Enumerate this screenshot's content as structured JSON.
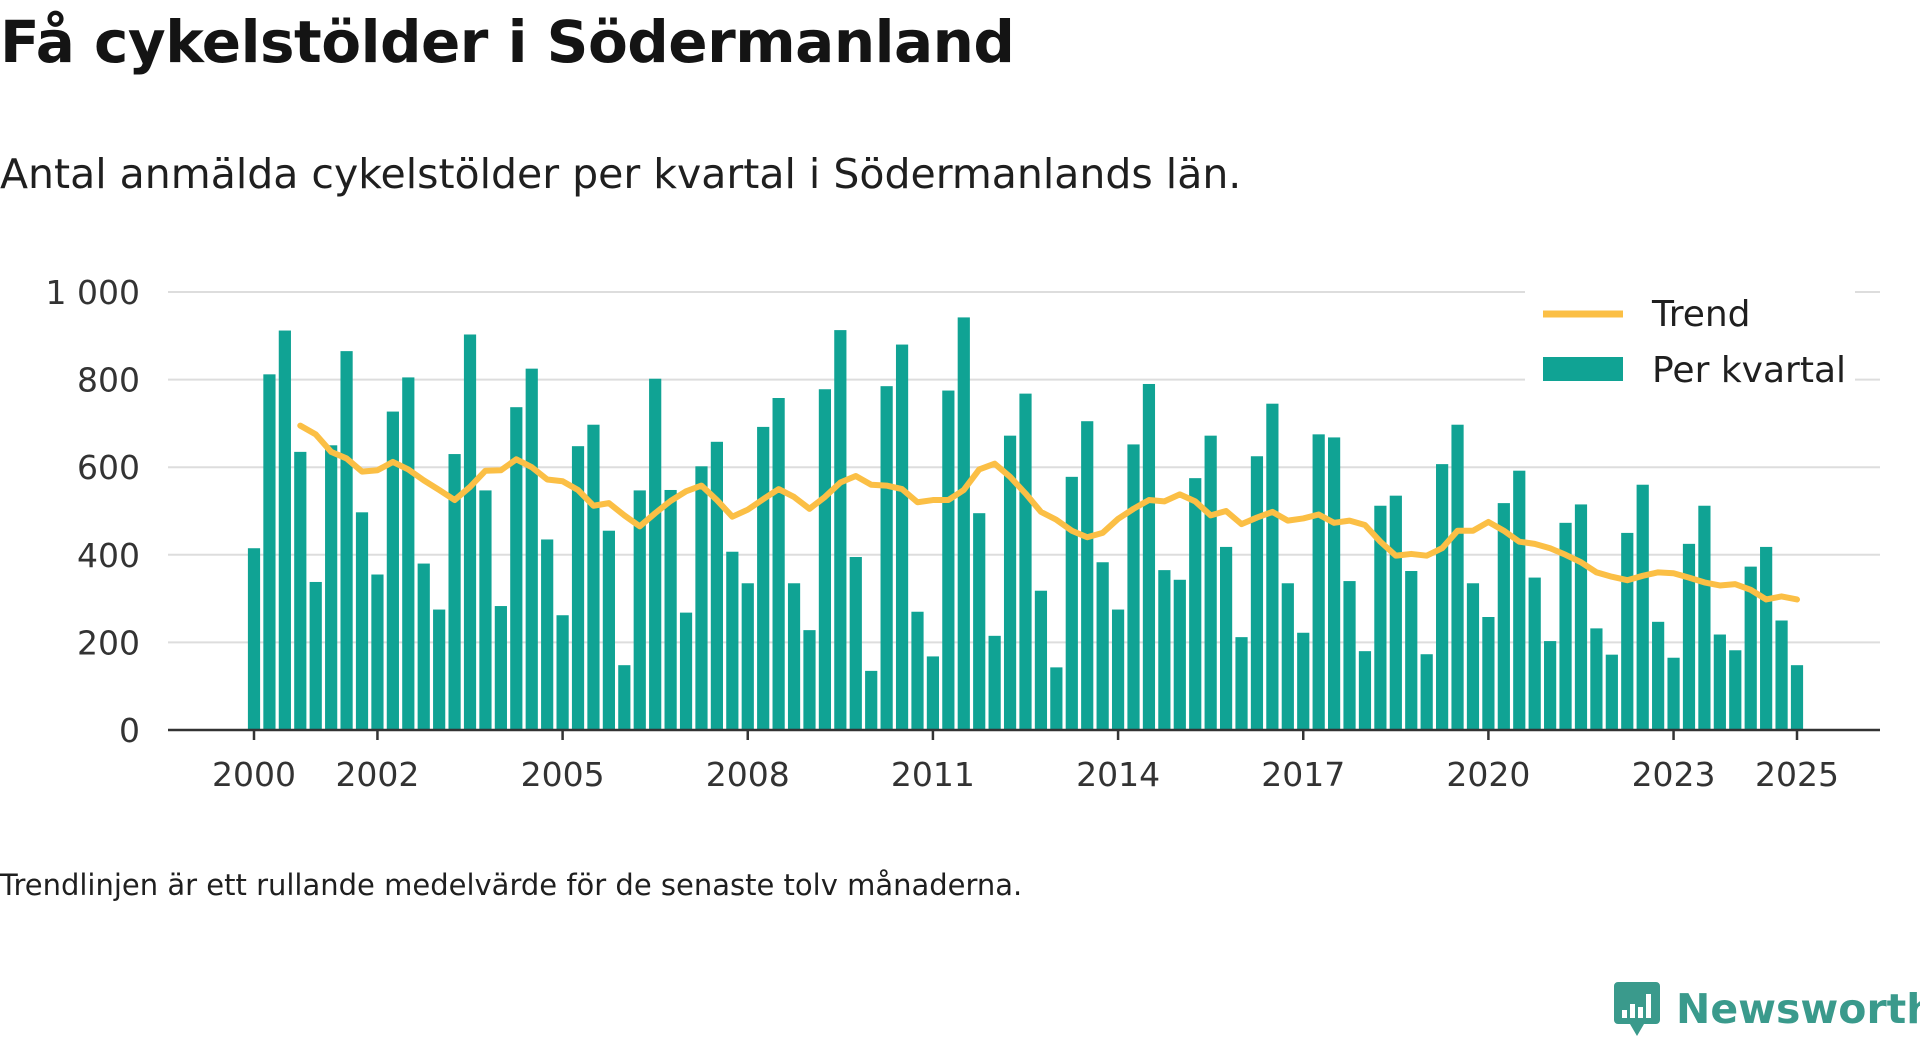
{
  "title": "Få cykelstölder i Södermanland",
  "subtitle": "Antal anmälda cykelstölder per kvartal i Södermanlands län.",
  "footnote": "Trendlinjen är ett rullande medelvärde för de senaste tolv månaderna.",
  "brand": {
    "name": "Newsworthy"
  },
  "colors": {
    "bar": "#10a394",
    "trend": "#fbbf45",
    "grid": "#dddddd",
    "axis": "#333333"
  },
  "chart_data": {
    "type": "bar",
    "ylim": [
      0,
      1000
    ],
    "yticks": [
      0,
      200,
      400,
      600,
      800,
      1000
    ],
    "ytick_labels": [
      "0",
      "200",
      "400",
      "600",
      "800",
      "1 000"
    ],
    "xticks": [
      {
        "year": 2000,
        "label": "2000"
      },
      {
        "year": 2002,
        "label": "2002"
      },
      {
        "year": 2005,
        "label": "2005"
      },
      {
        "year": 2008,
        "label": "2008"
      },
      {
        "year": 2011,
        "label": "2011"
      },
      {
        "year": 2014,
        "label": "2014"
      },
      {
        "year": 2017,
        "label": "2017"
      },
      {
        "year": 2020,
        "label": "2020"
      },
      {
        "year": 2023,
        "label": "2023"
      },
      {
        "year": 2025,
        "label": "2025"
      }
    ],
    "grid": true,
    "legend_position": "top-right",
    "series": [
      {
        "name": "Per kvartal",
        "type": "bar",
        "x": [
          "2000-Q1",
          "2000-Q2",
          "2000-Q3",
          "2000-Q4",
          "2001-Q1",
          "2001-Q2",
          "2001-Q3",
          "2001-Q4",
          "2002-Q1",
          "2002-Q2",
          "2002-Q3",
          "2002-Q4",
          "2003-Q1",
          "2003-Q2",
          "2003-Q3",
          "2003-Q4",
          "2004-Q1",
          "2004-Q2",
          "2004-Q3",
          "2004-Q4",
          "2005-Q1",
          "2005-Q2",
          "2005-Q3",
          "2005-Q4",
          "2006-Q1",
          "2006-Q2",
          "2006-Q3",
          "2006-Q4",
          "2007-Q1",
          "2007-Q2",
          "2007-Q3",
          "2007-Q4",
          "2008-Q1",
          "2008-Q2",
          "2008-Q3",
          "2008-Q4",
          "2009-Q1",
          "2009-Q2",
          "2009-Q3",
          "2009-Q4",
          "2010-Q1",
          "2010-Q2",
          "2010-Q3",
          "2010-Q4",
          "2011-Q1",
          "2011-Q2",
          "2011-Q3",
          "2011-Q4",
          "2012-Q1",
          "2012-Q2",
          "2012-Q3",
          "2012-Q4",
          "2013-Q1",
          "2013-Q2",
          "2013-Q3",
          "2013-Q4",
          "2014-Q1",
          "2014-Q2",
          "2014-Q3",
          "2014-Q4",
          "2015-Q1",
          "2015-Q2",
          "2015-Q3",
          "2015-Q4",
          "2016-Q1",
          "2016-Q2",
          "2016-Q3",
          "2016-Q4",
          "2017-Q1",
          "2017-Q2",
          "2017-Q3",
          "2017-Q4",
          "2018-Q1",
          "2018-Q2",
          "2018-Q3",
          "2018-Q4",
          "2019-Q1",
          "2019-Q2",
          "2019-Q3",
          "2019-Q4",
          "2020-Q1",
          "2020-Q2",
          "2020-Q3",
          "2020-Q4",
          "2021-Q1",
          "2021-Q2",
          "2021-Q3",
          "2021-Q4",
          "2022-Q1",
          "2022-Q2",
          "2022-Q3",
          "2022-Q4",
          "2023-Q1",
          "2023-Q2",
          "2023-Q3",
          "2023-Q4",
          "2024-Q1",
          "2024-Q2",
          "2024-Q3",
          "2024-Q4",
          "2025-Q1"
        ],
        "values": [
          415,
          812,
          912,
          635,
          338,
          650,
          865,
          497,
          355,
          727,
          805,
          380,
          275,
          630,
          903,
          547,
          283,
          737,
          825,
          435,
          262,
          648,
          697,
          455,
          148,
          547,
          802,
          548,
          268,
          602,
          658,
          407,
          335,
          692,
          758,
          335,
          228,
          778,
          913,
          395,
          135,
          785,
          880,
          270,
          168,
          775,
          942,
          495,
          215,
          672,
          768,
          318,
          143,
          578,
          705,
          383,
          275,
          652,
          790,
          365,
          343,
          575,
          672,
          418,
          212,
          625,
          745,
          335,
          222,
          675,
          668,
          340,
          180,
          512,
          535,
          363,
          173,
          607,
          697,
          335,
          258,
          518,
          592,
          348,
          203,
          473,
          515,
          232,
          172,
          450,
          560,
          247,
          165,
          425,
          512,
          218,
          182,
          373,
          418,
          250,
          148
        ]
      },
      {
        "name": "Trend",
        "type": "line",
        "x": [
          "2000-Q4",
          "2001-Q1",
          "2001-Q2",
          "2001-Q3",
          "2001-Q4",
          "2002-Q1",
          "2002-Q2",
          "2002-Q3",
          "2002-Q4",
          "2003-Q1",
          "2003-Q2",
          "2003-Q3",
          "2003-Q4",
          "2004-Q1",
          "2004-Q2",
          "2004-Q3",
          "2004-Q4",
          "2005-Q1",
          "2005-Q2",
          "2005-Q3",
          "2005-Q4",
          "2006-Q1",
          "2006-Q2",
          "2006-Q3",
          "2006-Q4",
          "2007-Q1",
          "2007-Q2",
          "2007-Q3",
          "2007-Q4",
          "2008-Q1",
          "2008-Q2",
          "2008-Q3",
          "2008-Q4",
          "2009-Q1",
          "2009-Q2",
          "2009-Q3",
          "2009-Q4",
          "2010-Q1",
          "2010-Q2",
          "2010-Q3",
          "2010-Q4",
          "2011-Q1",
          "2011-Q2",
          "2011-Q3",
          "2011-Q4",
          "2012-Q1",
          "2012-Q2",
          "2012-Q3",
          "2012-Q4",
          "2013-Q1",
          "2013-Q2",
          "2013-Q3",
          "2013-Q4",
          "2014-Q1",
          "2014-Q2",
          "2014-Q3",
          "2014-Q4",
          "2015-Q1",
          "2015-Q2",
          "2015-Q3",
          "2015-Q4",
          "2016-Q1",
          "2016-Q2",
          "2016-Q3",
          "2016-Q4",
          "2017-Q1",
          "2017-Q2",
          "2017-Q3",
          "2017-Q4",
          "2018-Q1",
          "2018-Q2",
          "2018-Q3",
          "2018-Q4",
          "2019-Q1",
          "2019-Q2",
          "2019-Q3",
          "2019-Q4",
          "2020-Q1",
          "2020-Q2",
          "2020-Q3",
          "2020-Q4",
          "2021-Q1",
          "2021-Q2",
          "2021-Q3",
          "2021-Q4",
          "2022-Q1",
          "2022-Q2",
          "2022-Q3",
          "2022-Q4",
          "2023-Q1",
          "2023-Q2",
          "2023-Q3",
          "2023-Q4",
          "2024-Q1",
          "2024-Q2",
          "2024-Q3",
          "2024-Q4",
          "2025-Q1"
        ],
        "values": [
          695,
          675,
          635,
          620,
          590,
          593,
          612,
          595,
          570,
          548,
          525,
          555,
          592,
          593,
          618,
          600,
          572,
          568,
          548,
          512,
          518,
          490,
          465,
          495,
          523,
          545,
          558,
          525,
          487,
          503,
          527,
          550,
          532,
          505,
          532,
          565,
          580,
          560,
          558,
          550,
          520,
          525,
          525,
          548,
          595,
          608,
          578,
          540,
          498,
          480,
          455,
          440,
          450,
          482,
          505,
          525,
          522,
          538,
          522,
          490,
          500,
          470,
          485,
          498,
          478,
          483,
          492,
          473,
          478,
          468,
          430,
          398,
          402,
          398,
          415,
          455,
          455,
          475,
          455,
          430,
          425,
          415,
          400,
          383,
          360,
          350,
          342,
          352,
          360,
          358,
          348,
          337,
          330,
          333,
          320,
          298,
          305,
          298
        ]
      }
    ]
  }
}
